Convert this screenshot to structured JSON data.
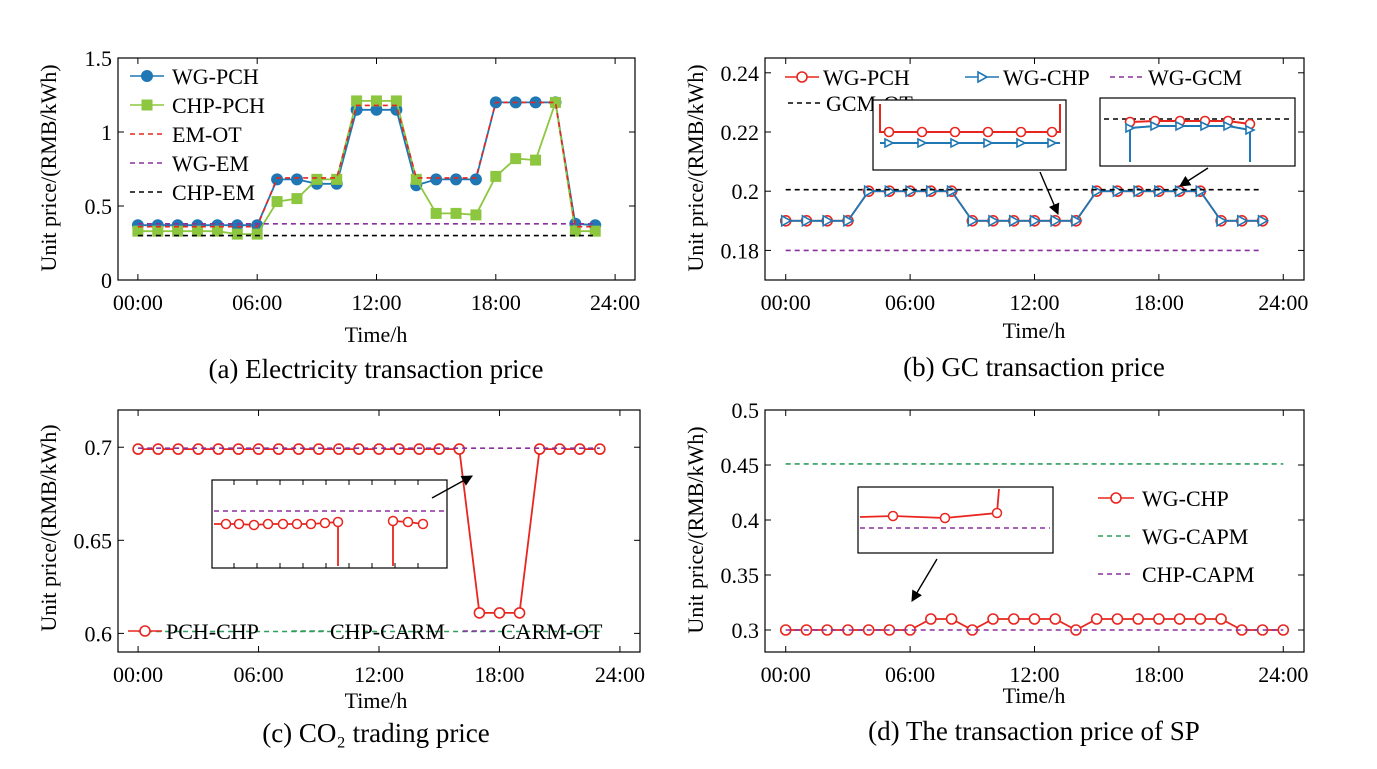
{
  "chart_data": [
    {
      "id": "a",
      "type": "line",
      "caption": "(a) Electricity transaction price",
      "xlabel": "Time/h",
      "ylabel": "Unit price/(RMB/kWh)",
      "xlim": [
        -1,
        25
      ],
      "ylim": [
        0,
        1.5
      ],
      "xticks": [
        0,
        6,
        12,
        18,
        24
      ],
      "xtick_labels": [
        "00:00",
        "06:00",
        "12:00",
        "18:00",
        "24:00"
      ],
      "yticks": [
        0,
        0.5,
        1,
        1.5
      ],
      "ytick_labels": [
        "0",
        "0.5",
        "1",
        "1.5"
      ],
      "series": [
        {
          "name": "WG-PCH",
          "style": "solid",
          "marker": "dot",
          "color": "#1f77b4",
          "x": [
            0,
            1,
            2,
            3,
            4,
            5,
            6,
            7,
            8,
            9,
            10,
            11,
            12,
            13,
            14,
            15,
            16,
            17,
            18,
            19,
            20,
            21,
            22,
            23
          ],
          "values": [
            0.37,
            0.37,
            0.37,
            0.37,
            0.37,
            0.37,
            0.37,
            0.68,
            0.68,
            0.65,
            0.65,
            1.15,
            1.15,
            1.15,
            0.64,
            0.68,
            0.68,
            0.68,
            1.2,
            1.2,
            1.2,
            1.2,
            0.38,
            0.37
          ]
        },
        {
          "name": "CHP-PCH",
          "style": "solid",
          "marker": "square",
          "color": "#8dc63f",
          "x": [
            0,
            1,
            2,
            3,
            4,
            5,
            6,
            7,
            8,
            9,
            10,
            11,
            12,
            13,
            14,
            15,
            16,
            17,
            18,
            19,
            20,
            21,
            22,
            23
          ],
          "values": [
            0.33,
            0.33,
            0.33,
            0.33,
            0.33,
            0.31,
            0.31,
            0.53,
            0.55,
            0.68,
            0.68,
            1.21,
            1.21,
            1.21,
            0.68,
            0.45,
            0.45,
            0.44,
            0.7,
            0.82,
            0.81,
            1.2,
            0.33,
            0.33
          ]
        },
        {
          "name": "EM-OT",
          "style": "dashed",
          "color": "#e8261f",
          "x": [
            0,
            1,
            2,
            3,
            4,
            5,
            6,
            7,
            8,
            9,
            10,
            11,
            12,
            13,
            14,
            15,
            16,
            17,
            18,
            19,
            20,
            21,
            22,
            23
          ],
          "values": [
            0.36,
            0.36,
            0.36,
            0.36,
            0.36,
            0.36,
            0.36,
            0.69,
            0.69,
            0.69,
            0.69,
            1.18,
            1.18,
            1.18,
            0.69,
            0.69,
            0.69,
            0.69,
            1.2,
            1.2,
            1.2,
            1.2,
            0.36,
            0.36
          ]
        },
        {
          "name": "WG-EM",
          "style": "dashed",
          "color": "#8b2f9e",
          "x": [
            0,
            23
          ],
          "values": [
            0.38,
            0.38
          ]
        },
        {
          "name": "CHP-EM",
          "style": "dashed",
          "color": "#000000",
          "x": [
            0,
            23
          ],
          "values": [
            0.3,
            0.3
          ]
        }
      ],
      "legend_position": "top-left"
    },
    {
      "id": "b",
      "type": "line",
      "caption": "(b) GC transaction price",
      "xlabel": "Time/h",
      "ylabel": "Unit price/(RMB/kWh)",
      "xlim": [
        -1,
        25
      ],
      "ylim": [
        0.17,
        0.245
      ],
      "xticks": [
        0,
        6,
        12,
        18,
        24
      ],
      "xtick_labels": [
        "00:00",
        "06:00",
        "12:00",
        "18:00",
        "24:00"
      ],
      "yticks": [
        0.18,
        0.2,
        0.22,
        0.24
      ],
      "ytick_labels": [
        "0.18",
        "0.2",
        "0.22",
        "0.24"
      ],
      "series": [
        {
          "name": "WG-PCH",
          "style": "solid",
          "marker": "circle",
          "color": "#e8261f",
          "x": [
            0,
            1,
            2,
            3,
            4,
            5,
            6,
            7,
            8,
            9,
            10,
            11,
            12,
            13,
            14,
            15,
            16,
            17,
            18,
            19,
            20,
            21,
            22,
            23
          ],
          "values": [
            0.19,
            0.19,
            0.19,
            0.19,
            0.2,
            0.2,
            0.2,
            0.2,
            0.2,
            0.19,
            0.19,
            0.19,
            0.19,
            0.19,
            0.19,
            0.2,
            0.2,
            0.2,
            0.2,
            0.2,
            0.2,
            0.19,
            0.19,
            0.19
          ]
        },
        {
          "name": "WG-CHP",
          "style": "solid",
          "marker": "triangle",
          "color": "#1f77b4",
          "x": [
            0,
            1,
            2,
            3,
            4,
            5,
            6,
            7,
            8,
            9,
            10,
            11,
            12,
            13,
            14,
            15,
            16,
            17,
            18,
            19,
            20,
            21,
            22,
            23
          ],
          "values": [
            0.19,
            0.19,
            0.19,
            0.19,
            0.2,
            0.2,
            0.2,
            0.2,
            0.2,
            0.19,
            0.19,
            0.19,
            0.19,
            0.19,
            0.19,
            0.2,
            0.2,
            0.2,
            0.2,
            0.2,
            0.2,
            0.19,
            0.19,
            0.19
          ]
        },
        {
          "name": "WG-GCM",
          "style": "dashed",
          "color": "#8b2f9e",
          "x": [
            0,
            23
          ],
          "values": [
            0.18,
            0.18
          ]
        },
        {
          "name": "GCM-OT",
          "style": "dashed",
          "color": "#000000",
          "x": [
            0,
            23
          ],
          "values": [
            0.2005,
            0.2005
          ]
        }
      ],
      "legend_position": "top"
    },
    {
      "id": "c",
      "type": "line",
      "caption": "(c) CO₂ trading price",
      "xlabel": "Time/h",
      "ylabel": "Unit price/(RMB/kWh)",
      "xlim": [
        -1,
        25
      ],
      "ylim": [
        0.59,
        0.72
      ],
      "xticks": [
        0,
        6,
        12,
        18,
        24
      ],
      "xtick_labels": [
        "00:00",
        "06:00",
        "12:00",
        "18:00",
        "24:00"
      ],
      "yticks": [
        0.6,
        0.65,
        0.7
      ],
      "ytick_labels": [
        "0.6",
        "0.65",
        "0.7"
      ],
      "series": [
        {
          "name": "PCH-CHP",
          "style": "solid",
          "marker": "circle",
          "color": "#e8261f",
          "x": [
            0,
            1,
            2,
            3,
            4,
            5,
            6,
            7,
            8,
            9,
            10,
            11,
            12,
            13,
            14,
            15,
            16,
            17,
            18,
            19,
            20,
            21,
            22,
            23
          ],
          "values": [
            0.699,
            0.699,
            0.699,
            0.699,
            0.699,
            0.699,
            0.699,
            0.699,
            0.699,
            0.699,
            0.699,
            0.699,
            0.699,
            0.699,
            0.699,
            0.699,
            0.699,
            0.611,
            0.611,
            0.611,
            0.699,
            0.699,
            0.699,
            0.699
          ]
        },
        {
          "name": "CHP-CARM",
          "style": "dashed",
          "color": "#2e9e5a",
          "x": [
            0,
            23
          ],
          "values": [
            0.601,
            0.601
          ]
        },
        {
          "name": "CARM-OT",
          "style": "dashed",
          "color": "#8b2f9e",
          "x": [
            0,
            23
          ],
          "values": [
            0.6995,
            0.6995
          ]
        }
      ],
      "legend_position": "bottom"
    },
    {
      "id": "d",
      "type": "line",
      "caption": "(d) The transaction price of SP",
      "xlabel": "Time/h",
      "ylabel": "Unit price/(RMB/kWh)",
      "xlim": [
        -1,
        25
      ],
      "ylim": [
        0.28,
        0.5
      ],
      "xticks": [
        0,
        6,
        12,
        18,
        24
      ],
      "xtick_labels": [
        "00:00",
        "06:00",
        "12:00",
        "18:00",
        "24:00"
      ],
      "yticks": [
        0.3,
        0.35,
        0.4,
        0.45,
        0.5
      ],
      "ytick_labels": [
        "0.3",
        "0.35",
        "0.4",
        "0.45",
        "0.5"
      ],
      "series": [
        {
          "name": "WG-CHP",
          "style": "solid",
          "marker": "circle",
          "color": "#e8261f",
          "x": [
            0,
            1,
            2,
            3,
            4,
            5,
            6,
            7,
            8,
            9,
            10,
            11,
            12,
            13,
            14,
            15,
            16,
            17,
            18,
            19,
            20,
            21,
            22,
            23,
            24
          ],
          "values": [
            0.3,
            0.3,
            0.3,
            0.3,
            0.3,
            0.3,
            0.3,
            0.31,
            0.31,
            0.3,
            0.31,
            0.31,
            0.31,
            0.31,
            0.3,
            0.31,
            0.31,
            0.31,
            0.31,
            0.31,
            0.31,
            0.31,
            0.3,
            0.3,
            0.3
          ]
        },
        {
          "name": "WG-CAPM",
          "style": "dashed",
          "color": "#2e9e5a",
          "x": [
            0,
            24
          ],
          "values": [
            0.451,
            0.451
          ]
        },
        {
          "name": "CHP-CAPM",
          "style": "dashed",
          "color": "#8b2f9e",
          "x": [
            0,
            24
          ],
          "values": [
            0.3,
            0.3
          ]
        }
      ],
      "legend_position": "right"
    }
  ]
}
